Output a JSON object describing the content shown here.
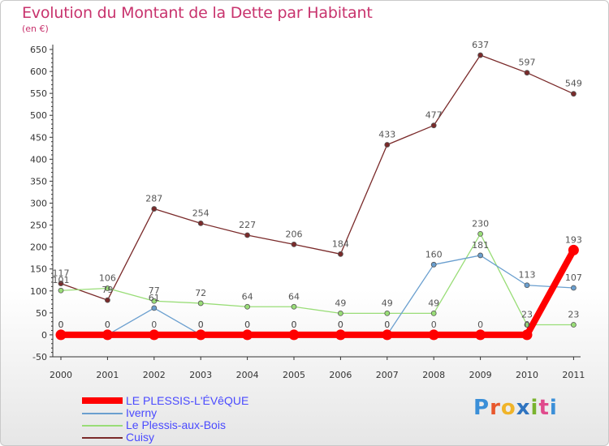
{
  "header": {
    "title": "Evolution du Montant de la Dette par Habitant",
    "unit": "(en €)"
  },
  "brand": {
    "letters": [
      "P",
      "r",
      "o",
      "x",
      "i",
      "t",
      "i"
    ]
  },
  "chart_data": {
    "type": "line",
    "title": "Evolution du Montant de la Dette par Habitant",
    "ylabel": "(en €)",
    "x": [
      "2000",
      "2001",
      "2002",
      "2003",
      "2004",
      "2005",
      "2006",
      "2007",
      "2008",
      "2009",
      "2010",
      "2011"
    ],
    "ylim": [
      -50,
      650
    ],
    "yticks": [
      -50,
      0,
      50,
      100,
      150,
      200,
      250,
      300,
      350,
      400,
      450,
      500,
      550,
      600,
      650
    ],
    "grid": false,
    "legend_position": "bottom-left",
    "series": [
      {
        "name": "LE PLESSIS-L'ÉVêQUE",
        "color": "#ff0000",
        "values": [
          0,
          0,
          0,
          0,
          0,
          0,
          0,
          0,
          0,
          0,
          0,
          193
        ]
      },
      {
        "name": "Iverny",
        "color": "#6a9fcf",
        "values": [
          0,
          0,
          61,
          0,
          0,
          0,
          0,
          0,
          160,
          181,
          113,
          107
        ]
      },
      {
        "name": "Le Plessis-aux-Bois",
        "color": "#99dd77",
        "values": [
          101,
          106,
          77,
          72,
          64,
          64,
          49,
          49,
          49,
          230,
          23,
          23
        ]
      },
      {
        "name": "Cuisy",
        "color": "#7a2a2a",
        "values": [
          117,
          79,
          287,
          254,
          227,
          206,
          184,
          433,
          477,
          637,
          597,
          549
        ]
      }
    ]
  }
}
